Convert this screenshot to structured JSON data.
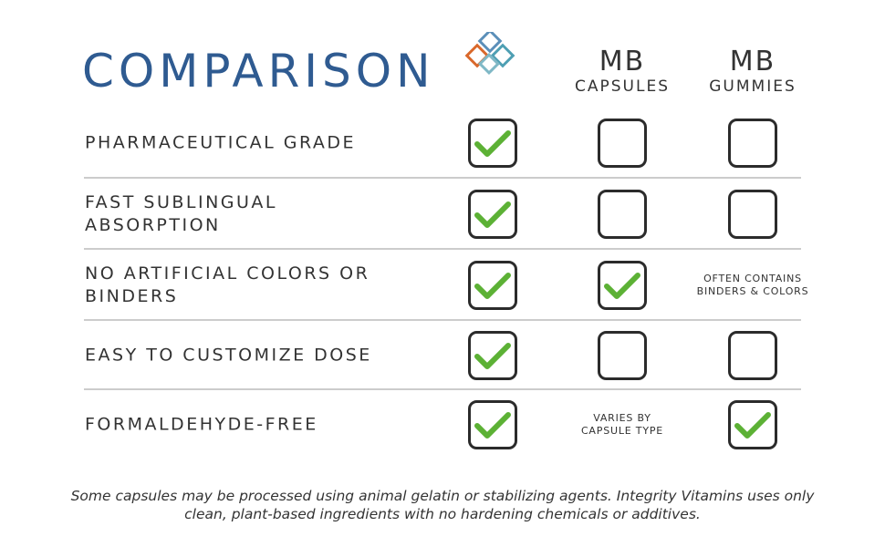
{
  "title": "COMPARISON",
  "columns": [
    {
      "top": "MB",
      "bottom": "CAPSULES"
    },
    {
      "top": "MB",
      "bottom": "GUMMIES"
    }
  ],
  "rows": [
    {
      "label": "PHARMACEUTICAL GRADE",
      "cells": [
        true,
        false,
        false
      ]
    },
    {
      "label": "FAST SUBLINGUAL ABSORPTION",
      "cells": [
        true,
        false,
        false
      ]
    },
    {
      "label": "NO ARTIFICIAL COLORS OR BINDERS",
      "cells": [
        true,
        true,
        [
          "OFTEN CONTAINS",
          "BINDERS & COLORS"
        ]
      ]
    },
    {
      "label": "EASY TO CUSTOMIZE DOSE",
      "cells": [
        true,
        false,
        false
      ]
    },
    {
      "label": "FORMALDEHYDE-FREE",
      "cells": [
        true,
        [
          "VARIES BY",
          "CAPSULE TYPE"
        ],
        true
      ]
    }
  ],
  "footnote": [
    "Some capsules may be processed using animal gelatin or stabilizing agents. Integrity Vitamins uses only",
    "clean, plant-based ingredients with no hardening chemicals or additives."
  ]
}
